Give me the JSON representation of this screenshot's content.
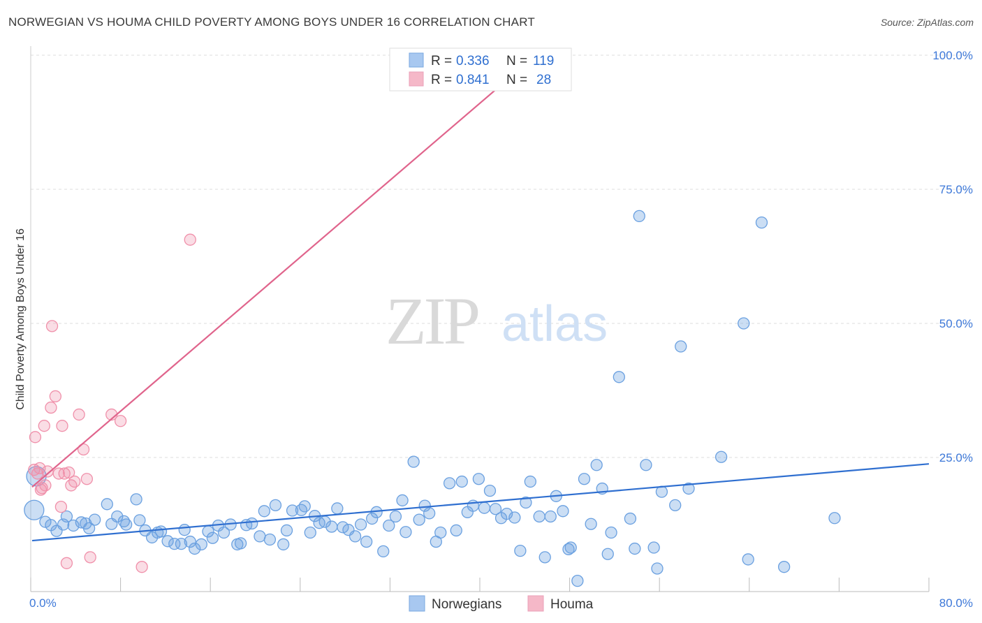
{
  "title": "NORWEGIAN VS HOUMA CHILD POVERTY AMONG BOYS UNDER 16 CORRELATION CHART",
  "source": "Source: ZipAtlas.com",
  "watermark": {
    "zip": "ZIP",
    "atlas": "atlas"
  },
  "legend_top": {
    "rows": [
      {
        "r_label": "R = ",
        "r_value": "0.336",
        "n_label": "N = ",
        "n_value": "119",
        "color": "#a8c8f0"
      },
      {
        "r_label": "R = ",
        "r_value": "0.841",
        "n_label": "N = ",
        "n_value": "28",
        "color": "#f5b8c8"
      }
    ]
  },
  "chart_data": {
    "type": "scatter",
    "title": "NORWEGIAN VS HOUMA CHILD POVERTY AMONG BOYS UNDER 16 CORRELATION CHART",
    "xlabel": "",
    "ylabel": "Child Poverty Among Boys Under 16",
    "xlim": [
      0,
      80
    ],
    "ylim": [
      0,
      100
    ],
    "x_tick_labels": [
      "0.0%",
      "80.0%"
    ],
    "y_tick_labels": [
      "25.0%",
      "50.0%",
      "75.0%",
      "100.0%"
    ],
    "y_ticks": [
      25,
      50,
      75,
      100
    ],
    "grid": true,
    "legend_position": "top-center",
    "colors": {
      "norwegians": "#6aa0e0",
      "houma": "#f090aa",
      "norwegians_line": "#2f6fd0",
      "houma_line": "#e0648c"
    },
    "series": [
      {
        "name": "Norwegians",
        "trend": {
          "x": [
            0,
            80
          ],
          "y": [
            9.5,
            23.8
          ]
        },
        "points": [
          [
            0.3,
            15.2
          ],
          [
            0.5,
            21.5
          ],
          [
            1.3,
            13.0
          ],
          [
            1.8,
            12.4
          ],
          [
            2.3,
            11.3
          ],
          [
            2.9,
            12.5
          ],
          [
            3.2,
            14.0
          ],
          [
            3.8,
            12.3
          ],
          [
            4.5,
            12.9
          ],
          [
            4.9,
            12.7
          ],
          [
            5.2,
            11.8
          ],
          [
            5.7,
            13.4
          ],
          [
            6.8,
            16.3
          ],
          [
            7.2,
            12.6
          ],
          [
            7.7,
            14.0
          ],
          [
            8.3,
            13.1
          ],
          [
            8.5,
            12.5
          ],
          [
            9.4,
            17.2
          ],
          [
            9.7,
            13.3
          ],
          [
            10.2,
            11.4
          ],
          [
            10.8,
            10.1
          ],
          [
            11.3,
            11.0
          ],
          [
            11.6,
            11.2
          ],
          [
            12.2,
            9.4
          ],
          [
            12.8,
            8.9
          ],
          [
            13.4,
            8.9
          ],
          [
            13.7,
            11.5
          ],
          [
            14.2,
            9.3
          ],
          [
            14.6,
            8.0
          ],
          [
            15.2,
            8.8
          ],
          [
            15.8,
            11.2
          ],
          [
            16.2,
            10.0
          ],
          [
            16.7,
            12.3
          ],
          [
            17.2,
            11.0
          ],
          [
            17.8,
            12.5
          ],
          [
            18.4,
            8.8
          ],
          [
            18.7,
            9.0
          ],
          [
            19.2,
            12.4
          ],
          [
            19.7,
            12.7
          ],
          [
            20.4,
            10.3
          ],
          [
            20.8,
            15.0
          ],
          [
            21.3,
            9.7
          ],
          [
            21.8,
            16.1
          ],
          [
            22.5,
            8.8
          ],
          [
            22.8,
            11.4
          ],
          [
            23.3,
            15.1
          ],
          [
            24.1,
            15.2
          ],
          [
            24.4,
            15.9
          ],
          [
            24.9,
            11.0
          ],
          [
            25.3,
            14.1
          ],
          [
            25.7,
            12.8
          ],
          [
            26.2,
            13.0
          ],
          [
            26.8,
            12.1
          ],
          [
            27.3,
            15.5
          ],
          [
            27.8,
            12.0
          ],
          [
            28.3,
            11.5
          ],
          [
            28.9,
            10.3
          ],
          [
            29.4,
            12.5
          ],
          [
            29.9,
            9.3
          ],
          [
            30.4,
            13.6
          ],
          [
            30.8,
            14.8
          ],
          [
            31.4,
            7.5
          ],
          [
            31.9,
            12.3
          ],
          [
            32.5,
            14.0
          ],
          [
            33.1,
            17.0
          ],
          [
            33.4,
            11.1
          ],
          [
            34.1,
            24.2
          ],
          [
            34.6,
            13.4
          ],
          [
            35.1,
            16.0
          ],
          [
            35.5,
            14.6
          ],
          [
            36.1,
            9.3
          ],
          [
            36.5,
            11.0
          ],
          [
            37.3,
            20.2
          ],
          [
            37.9,
            11.4
          ],
          [
            38.4,
            20.5
          ],
          [
            38.9,
            14.8
          ],
          [
            39.4,
            16.0
          ],
          [
            39.9,
            21.0
          ],
          [
            40.4,
            15.6
          ],
          [
            40.9,
            18.8
          ],
          [
            41.4,
            15.4
          ],
          [
            41.9,
            13.7
          ],
          [
            42.4,
            14.5
          ],
          [
            43.1,
            13.8
          ],
          [
            43.6,
            7.6
          ],
          [
            44.1,
            16.6
          ],
          [
            44.5,
            20.5
          ],
          [
            45.3,
            14.0
          ],
          [
            45.8,
            6.4
          ],
          [
            46.3,
            14.0
          ],
          [
            46.8,
            17.8
          ],
          [
            47.4,
            15.0
          ],
          [
            47.9,
            7.9
          ],
          [
            48.1,
            8.2
          ],
          [
            48.7,
            2.0
          ],
          [
            49.3,
            21.0
          ],
          [
            49.9,
            12.6
          ],
          [
            50.4,
            23.6
          ],
          [
            50.9,
            19.2
          ],
          [
            51.4,
            7.0
          ],
          [
            51.7,
            11.0
          ],
          [
            52.4,
            40.0
          ],
          [
            53.4,
            13.6
          ],
          [
            53.8,
            8.0
          ],
          [
            54.2,
            70.0
          ],
          [
            54.8,
            23.6
          ],
          [
            55.5,
            8.2
          ],
          [
            55.8,
            4.3
          ],
          [
            56.2,
            18.6
          ],
          [
            57.9,
            45.7
          ],
          [
            58.6,
            19.2
          ],
          [
            57.4,
            16.1
          ],
          [
            61.5,
            25.1
          ],
          [
            63.5,
            50.0
          ],
          [
            63.9,
            6.0
          ],
          [
            65.1,
            68.8
          ],
          [
            67.1,
            4.6
          ],
          [
            71.6,
            13.7
          ]
        ]
      },
      {
        "name": "Houma",
        "trend": {
          "x": [
            0,
            45
          ],
          "y": [
            19.5,
            100
          ]
        },
        "points": [
          [
            0.3,
            22.7
          ],
          [
            0.4,
            28.8
          ],
          [
            0.6,
            22.0
          ],
          [
            0.8,
            23.0
          ],
          [
            1.0,
            19.3
          ],
          [
            1.3,
            19.8
          ],
          [
            1.5,
            22.4
          ],
          [
            1.8,
            34.3
          ],
          [
            1.9,
            49.5
          ],
          [
            2.2,
            36.4
          ],
          [
            2.7,
            15.8
          ],
          [
            2.8,
            30.9
          ],
          [
            3.0,
            22.0
          ],
          [
            3.2,
            5.3
          ],
          [
            3.4,
            22.2
          ],
          [
            3.6,
            19.8
          ],
          [
            3.9,
            20.5
          ],
          [
            4.3,
            33.0
          ],
          [
            4.7,
            26.5
          ],
          [
            5.0,
            21.0
          ],
          [
            5.3,
            6.4
          ],
          [
            7.2,
            33.0
          ],
          [
            8.0,
            31.8
          ],
          [
            9.9,
            4.6
          ],
          [
            14.2,
            65.6
          ],
          [
            1.2,
            30.9
          ],
          [
            0.9,
            19.0
          ],
          [
            2.5,
            22.0
          ]
        ]
      }
    ]
  },
  "bottom_legend": {
    "items": [
      {
        "label": "Norwegians",
        "color": "#a8c8f0"
      },
      {
        "label": "Houma",
        "color": "#f5b8c8"
      }
    ]
  }
}
